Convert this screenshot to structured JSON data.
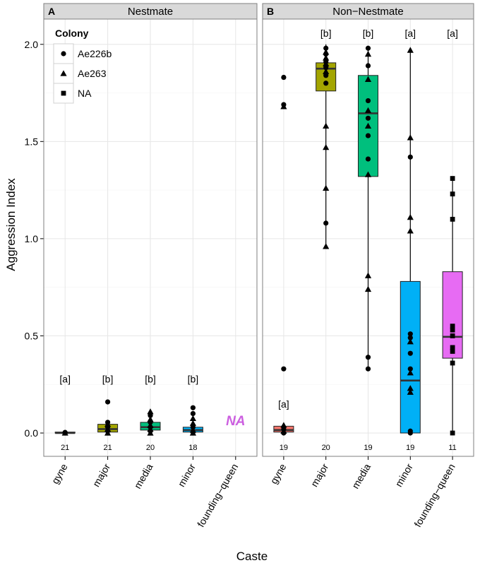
{
  "chart_data": {
    "type": "boxplot",
    "ylabel": "Aggression Index",
    "xlabel": "Caste",
    "ylim": [
      -0.12,
      2.13
    ],
    "yticks": [
      {
        "v": 0.0,
        "label": "0.0"
      },
      {
        "v": 0.5,
        "label": "0.5"
      },
      {
        "v": 1.0,
        "label": "1.0"
      },
      {
        "v": 1.5,
        "label": "1.5"
      },
      {
        "v": 2.0,
        "label": "2.0"
      }
    ],
    "categories": [
      "gyne",
      "major",
      "media",
      "minor",
      "founding−queen"
    ],
    "legend": {
      "title": "Colony",
      "entries": [
        {
          "label": "Ae226b",
          "shape": "circle"
        },
        {
          "label": "Ae263",
          "shape": "triangle"
        },
        {
          "label": "NA",
          "shape": "square"
        }
      ]
    },
    "panels": [
      {
        "tag": "A",
        "title": "Nestmate",
        "boxes": [
          {
            "cat": "gyne",
            "min": 0.0,
            "q1": 0.0,
            "median": 0.0,
            "q3": 0.005,
            "max": 0.005,
            "color": "#f8766d",
            "points": [
              {
                "v": 0.0,
                "s": "circle"
              },
              {
                "v": 0.0,
                "s": "triangle"
              },
              {
                "v": 0.003,
                "s": "circle"
              }
            ]
          },
          {
            "cat": "major",
            "min": 0.0,
            "q1": 0.005,
            "median": 0.02,
            "q3": 0.045,
            "max": 0.06,
            "color": "#a3a500",
            "points": [
              {
                "v": 0.16,
                "s": "circle"
              },
              {
                "v": 0.055,
                "s": "circle"
              },
              {
                "v": 0.045,
                "s": "triangle"
              },
              {
                "v": 0.03,
                "s": "circle"
              },
              {
                "v": 0.02,
                "s": "triangle"
              },
              {
                "v": 0.01,
                "s": "circle"
              },
              {
                "v": 0.0,
                "s": "triangle"
              }
            ]
          },
          {
            "cat": "media",
            "min": 0.0,
            "q1": 0.015,
            "median": 0.03,
            "q3": 0.055,
            "max": 0.1,
            "color": "#00bf7d",
            "points": [
              {
                "v": 0.11,
                "s": "triangle"
              },
              {
                "v": 0.09,
                "s": "circle"
              },
              {
                "v": 0.07,
                "s": "triangle"
              },
              {
                "v": 0.055,
                "s": "circle"
              },
              {
                "v": 0.04,
                "s": "triangle"
              },
              {
                "v": 0.03,
                "s": "circle"
              },
              {
                "v": 0.02,
                "s": "triangle"
              },
              {
                "v": 0.01,
                "s": "circle"
              },
              {
                "v": 0.0,
                "s": "triangle"
              }
            ]
          },
          {
            "cat": "minor",
            "min": 0.0,
            "q1": 0.005,
            "median": 0.015,
            "q3": 0.03,
            "max": 0.05,
            "color": "#00b0f6",
            "points": [
              {
                "v": 0.13,
                "s": "circle"
              },
              {
                "v": 0.1,
                "s": "circle"
              },
              {
                "v": 0.075,
                "s": "triangle"
              },
              {
                "v": 0.05,
                "s": "triangle"
              },
              {
                "v": 0.03,
                "s": "circle"
              },
              {
                "v": 0.015,
                "s": "triangle"
              },
              {
                "v": 0.005,
                "s": "circle"
              },
              {
                "v": 0.0,
                "s": "triangle"
              }
            ]
          }
        ],
        "sig_labels": [
          {
            "cat": "gyne",
            "text": "[a]",
            "v": 0.26
          },
          {
            "cat": "major",
            "text": "[b]",
            "v": 0.26
          },
          {
            "cat": "media",
            "text": "[b]",
            "v": 0.26
          },
          {
            "cat": "minor",
            "text": "[b]",
            "v": 0.26
          }
        ],
        "counts": [
          {
            "cat": "gyne",
            "n": "21"
          },
          {
            "cat": "major",
            "n": "21"
          },
          {
            "cat": "media",
            "n": "20"
          },
          {
            "cat": "minor",
            "n": "18"
          }
        ],
        "na_label": {
          "cat": "founding−queen",
          "text": "NA",
          "color": "#cc5fe0",
          "v": 0.04
        }
      },
      {
        "tag": "B",
        "title": "Non−Nestmate",
        "boxes": [
          {
            "cat": "gyne",
            "min": 0.0,
            "q1": 0.005,
            "median": 0.015,
            "q3": 0.035,
            "max": 0.04,
            "color": "#f8766d",
            "points": [
              {
                "v": 1.83,
                "s": "circle"
              },
              {
                "v": 1.69,
                "s": "circle"
              },
              {
                "v": 1.68,
                "s": "triangle"
              },
              {
                "v": 0.33,
                "s": "circle"
              },
              {
                "v": 0.04,
                "s": "triangle"
              },
              {
                "v": 0.02,
                "s": "circle"
              },
              {
                "v": 0.01,
                "s": "triangle"
              },
              {
                "v": 0.0,
                "s": "circle"
              }
            ]
          },
          {
            "cat": "major",
            "min": 0.96,
            "q1": 1.76,
            "median": 1.875,
            "q3": 1.905,
            "max": 2.0,
            "color": "#a3a500",
            "points": [
              {
                "v": 1.98,
                "s": "circle"
              },
              {
                "v": 1.96,
                "s": "triangle"
              },
              {
                "v": 1.95,
                "s": "circle"
              },
              {
                "v": 1.93,
                "s": "triangle"
              },
              {
                "v": 1.91,
                "s": "circle"
              },
              {
                "v": 1.9,
                "s": "triangle"
              },
              {
                "v": 1.88,
                "s": "circle"
              },
              {
                "v": 1.86,
                "s": "triangle"
              },
              {
                "v": 1.84,
                "s": "circle"
              },
              {
                "v": 1.8,
                "s": "circle"
              },
              {
                "v": 1.58,
                "s": "triangle"
              },
              {
                "v": 1.47,
                "s": "triangle"
              },
              {
                "v": 1.26,
                "s": "triangle"
              },
              {
                "v": 1.08,
                "s": "circle"
              },
              {
                "v": 0.96,
                "s": "triangle"
              }
            ]
          },
          {
            "cat": "media",
            "min": 0.33,
            "q1": 1.32,
            "median": 1.645,
            "q3": 1.84,
            "max": 1.98,
            "color": "#00bf7d",
            "points": [
              {
                "v": 1.98,
                "s": "circle"
              },
              {
                "v": 1.95,
                "s": "triangle"
              },
              {
                "v": 1.89,
                "s": "circle"
              },
              {
                "v": 1.82,
                "s": "triangle"
              },
              {
                "v": 1.71,
                "s": "circle"
              },
              {
                "v": 1.66,
                "s": "triangle"
              },
              {
                "v": 1.62,
                "s": "circle"
              },
              {
                "v": 1.58,
                "s": "triangle"
              },
              {
                "v": 1.53,
                "s": "circle"
              },
              {
                "v": 1.41,
                "s": "circle"
              },
              {
                "v": 1.33,
                "s": "triangle"
              },
              {
                "v": 0.81,
                "s": "triangle"
              },
              {
                "v": 0.74,
                "s": "triangle"
              },
              {
                "v": 0.39,
                "s": "circle"
              },
              {
                "v": 0.33,
                "s": "circle"
              }
            ]
          },
          {
            "cat": "minor",
            "min": 0.0,
            "q1": 0.0,
            "median": 0.27,
            "q3": 0.78,
            "max": 1.97,
            "color": "#00b0f6",
            "points": [
              {
                "v": 1.97,
                "s": "triangle"
              },
              {
                "v": 1.52,
                "s": "triangle"
              },
              {
                "v": 1.42,
                "s": "circle"
              },
              {
                "v": 1.11,
                "s": "triangle"
              },
              {
                "v": 1.04,
                "s": "triangle"
              },
              {
                "v": 0.51,
                "s": "circle"
              },
              {
                "v": 0.49,
                "s": "circle"
              },
              {
                "v": 0.47,
                "s": "triangle"
              },
              {
                "v": 0.41,
                "s": "circle"
              },
              {
                "v": 0.33,
                "s": "circle"
              },
              {
                "v": 0.31,
                "s": "triangle"
              },
              {
                "v": 0.23,
                "s": "triangle"
              },
              {
                "v": 0.21,
                "s": "triangle"
              },
              {
                "v": 0.01,
                "s": "circle"
              },
              {
                "v": 0.0,
                "s": "circle"
              }
            ]
          },
          {
            "cat": "founding−queen",
            "min": 0.0,
            "q1": 0.385,
            "median": 0.495,
            "q3": 0.83,
            "max": 1.31,
            "color": "#e76bf3",
            "points": [
              {
                "v": 1.31,
                "s": "square"
              },
              {
                "v": 1.23,
                "s": "square"
              },
              {
                "v": 1.1,
                "s": "square"
              },
              {
                "v": 0.55,
                "s": "square"
              },
              {
                "v": 0.53,
                "s": "square"
              },
              {
                "v": 0.5,
                "s": "square"
              },
              {
                "v": 0.44,
                "s": "square"
              },
              {
                "v": 0.42,
                "s": "square"
              },
              {
                "v": 0.36,
                "s": "square"
              },
              {
                "v": 0.0,
                "s": "square"
              }
            ]
          }
        ],
        "sig_labels": [
          {
            "cat": "gyne",
            "text": "[a]",
            "v": 0.13
          },
          {
            "cat": "major",
            "text": "[b]",
            "v": 2.04
          },
          {
            "cat": "media",
            "text": "[b]",
            "v": 2.04
          },
          {
            "cat": "minor",
            "text": "[a]",
            "v": 2.04
          },
          {
            "cat": "founding−queen",
            "text": "[a]",
            "v": 2.04
          }
        ],
        "counts": [
          {
            "cat": "gyne",
            "n": "19"
          },
          {
            "cat": "major",
            "n": "20"
          },
          {
            "cat": "media",
            "n": "19"
          },
          {
            "cat": "minor",
            "n": "19"
          },
          {
            "cat": "founding−queen",
            "n": "11"
          }
        ]
      }
    ]
  }
}
